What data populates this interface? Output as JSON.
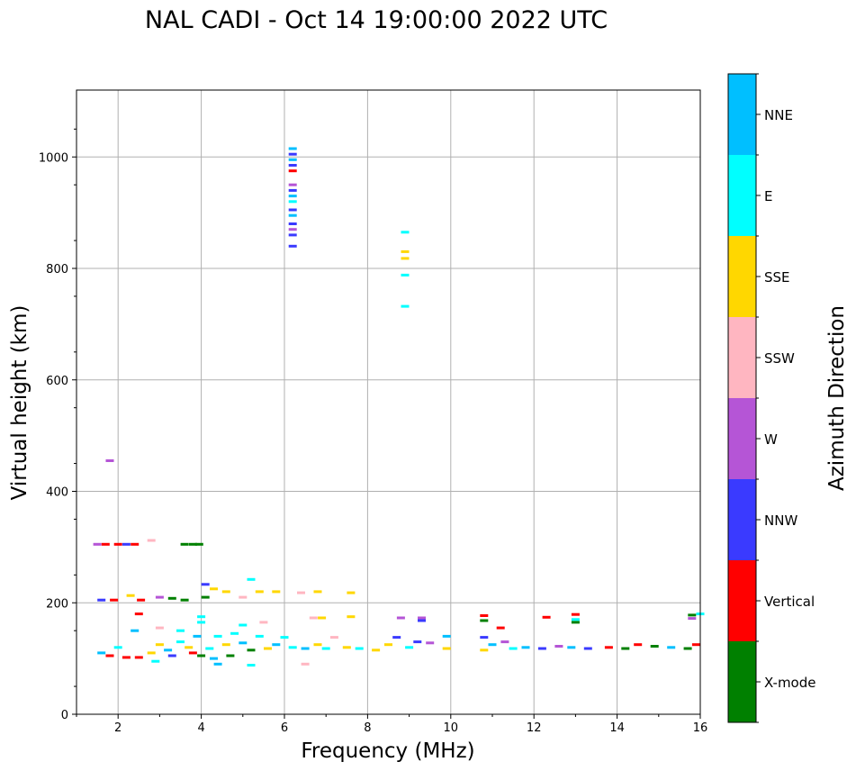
{
  "chart_data": {
    "type": "scatter",
    "title": "NAL CADI - Oct 14 19:00:00 2022 UTC",
    "xlabel": "Frequency (MHz)",
    "ylabel": "Virtual height (km)",
    "xlim": [
      1,
      16
    ],
    "ylim": [
      0,
      1120
    ],
    "x_ticks": [
      2,
      4,
      6,
      8,
      10,
      12,
      14,
      16
    ],
    "y_ticks": [
      0,
      200,
      400,
      600,
      800,
      1000
    ],
    "grid": true,
    "colorbar": {
      "label": "Azimuth Direction",
      "categories": [
        {
          "name": "X-mode",
          "color": "#008000"
        },
        {
          "name": "Vertical",
          "color": "#ff0000"
        },
        {
          "name": "NNW",
          "color": "#3a3aff"
        },
        {
          "name": "W",
          "color": "#b555d6"
        },
        {
          "name": "SSW",
          "color": "#ffb6c1"
        },
        {
          "name": "SSE",
          "color": "#ffd700"
        },
        {
          "name": "E",
          "color": "#00ffff"
        },
        {
          "name": "NNE",
          "color": "#00bfff"
        }
      ]
    },
    "points": [
      {
        "f": 6.2,
        "h": 1015,
        "d": "NNE"
      },
      {
        "f": 6.2,
        "h": 1005,
        "d": "NNW"
      },
      {
        "f": 6.2,
        "h": 995,
        "d": "NNE"
      },
      {
        "f": 6.2,
        "h": 985,
        "d": "NNW"
      },
      {
        "f": 6.2,
        "h": 975,
        "d": "Vertical"
      },
      {
        "f": 6.2,
        "h": 950,
        "d": "W"
      },
      {
        "f": 6.2,
        "h": 940,
        "d": "NNW"
      },
      {
        "f": 6.2,
        "h": 930,
        "d": "NNE"
      },
      {
        "f": 6.2,
        "h": 920,
        "d": "E"
      },
      {
        "f": 6.2,
        "h": 905,
        "d": "NNW"
      },
      {
        "f": 6.2,
        "h": 895,
        "d": "NNE"
      },
      {
        "f": 6.2,
        "h": 880,
        "d": "NNW"
      },
      {
        "f": 6.2,
        "h": 870,
        "d": "W"
      },
      {
        "f": 6.2,
        "h": 860,
        "d": "NNW"
      },
      {
        "f": 6.2,
        "h": 840,
        "d": "NNW"
      },
      {
        "f": 8.9,
        "h": 865,
        "d": "E"
      },
      {
        "f": 8.9,
        "h": 830,
        "d": "SSE"
      },
      {
        "f": 8.9,
        "h": 818,
        "d": "SSE"
      },
      {
        "f": 8.9,
        "h": 788,
        "d": "E"
      },
      {
        "f": 8.9,
        "h": 732,
        "d": "E"
      },
      {
        "f": 1.8,
        "h": 455,
        "d": "W"
      },
      {
        "f": 1.5,
        "h": 305,
        "d": "W"
      },
      {
        "f": 1.7,
        "h": 305,
        "d": "Vertical"
      },
      {
        "f": 2.0,
        "h": 305,
        "d": "Vertical"
      },
      {
        "f": 2.2,
        "h": 305,
        "d": "NNW"
      },
      {
        "f": 2.4,
        "h": 305,
        "d": "Vertical"
      },
      {
        "f": 2.8,
        "h": 312,
        "d": "SSW"
      },
      {
        "f": 3.6,
        "h": 305,
        "d": "X-mode"
      },
      {
        "f": 3.8,
        "h": 305,
        "d": "X-mode"
      },
      {
        "f": 3.95,
        "h": 305,
        "d": "X-mode"
      },
      {
        "f": 1.6,
        "h": 205,
        "d": "NNW"
      },
      {
        "f": 1.9,
        "h": 205,
        "d": "Vertical"
      },
      {
        "f": 2.3,
        "h": 213,
        "d": "SSE"
      },
      {
        "f": 2.55,
        "h": 205,
        "d": "Vertical"
      },
      {
        "f": 3.0,
        "h": 210,
        "d": "W"
      },
      {
        "f": 3.3,
        "h": 208,
        "d": "X-mode"
      },
      {
        "f": 3.6,
        "h": 205,
        "d": "X-mode"
      },
      {
        "f": 4.1,
        "h": 210,
        "d": "X-mode"
      },
      {
        "f": 4.1,
        "h": 233,
        "d": "NNW"
      },
      {
        "f": 4.3,
        "h": 225,
        "d": "SSE"
      },
      {
        "f": 4.6,
        "h": 220,
        "d": "SSE"
      },
      {
        "f": 5.0,
        "h": 210,
        "d": "SSW"
      },
      {
        "f": 5.2,
        "h": 242,
        "d": "E"
      },
      {
        "f": 5.4,
        "h": 220,
        "d": "SSE"
      },
      {
        "f": 5.8,
        "h": 220,
        "d": "SSE"
      },
      {
        "f": 6.4,
        "h": 218,
        "d": "SSW"
      },
      {
        "f": 6.8,
        "h": 220,
        "d": "SSE"
      },
      {
        "f": 7.6,
        "h": 218,
        "d": "SSE"
      },
      {
        "f": 6.7,
        "h": 173,
        "d": "SSW"
      },
      {
        "f": 6.9,
        "h": 173,
        "d": "SSE"
      },
      {
        "f": 7.6,
        "h": 175,
        "d": "SSE"
      },
      {
        "f": 8.8,
        "h": 173,
        "d": "W"
      },
      {
        "f": 9.3,
        "h": 173,
        "d": "W"
      },
      {
        "f": 9.3,
        "h": 168,
        "d": "NNW"
      },
      {
        "f": 10.8,
        "h": 177,
        "d": "Vertical"
      },
      {
        "f": 10.8,
        "h": 168,
        "d": "X-mode"
      },
      {
        "f": 11.2,
        "h": 155,
        "d": "Vertical"
      },
      {
        "f": 12.3,
        "h": 174,
        "d": "Vertical"
      },
      {
        "f": 13.0,
        "h": 179,
        "d": "Vertical"
      },
      {
        "f": 13.0,
        "h": 170,
        "d": "E"
      },
      {
        "f": 13.0,
        "h": 165,
        "d": "X-mode"
      },
      {
        "f": 15.8,
        "h": 178,
        "d": "X-mode"
      },
      {
        "f": 15.8,
        "h": 172,
        "d": "W"
      },
      {
        "f": 16.0,
        "h": 180,
        "d": "E"
      },
      {
        "f": 4.0,
        "h": 175,
        "d": "E"
      },
      {
        "f": 4.0,
        "h": 165,
        "d": "E"
      },
      {
        "f": 5.0,
        "h": 160,
        "d": "E"
      },
      {
        "f": 5.5,
        "h": 165,
        "d": "SSW"
      },
      {
        "f": 3.0,
        "h": 155,
        "d": "SSW"
      },
      {
        "f": 3.5,
        "h": 150,
        "d": "E"
      },
      {
        "f": 2.4,
        "h": 150,
        "d": "NNE"
      },
      {
        "f": 2.5,
        "h": 180,
        "d": "Vertical"
      },
      {
        "f": 2.0,
        "h": 120,
        "d": "E"
      },
      {
        "f": 1.6,
        "h": 110,
        "d": "NNE"
      },
      {
        "f": 1.8,
        "h": 105,
        "d": "Vertical"
      },
      {
        "f": 2.2,
        "h": 102,
        "d": "Vertical"
      },
      {
        "f": 2.5,
        "h": 102,
        "d": "Vertical"
      },
      {
        "f": 2.8,
        "h": 110,
        "d": "SSE"
      },
      {
        "f": 2.9,
        "h": 95,
        "d": "E"
      },
      {
        "f": 3.0,
        "h": 125,
        "d": "SSE"
      },
      {
        "f": 3.2,
        "h": 115,
        "d": "NNE"
      },
      {
        "f": 3.3,
        "h": 105,
        "d": "NNW"
      },
      {
        "f": 3.5,
        "h": 130,
        "d": "E"
      },
      {
        "f": 3.7,
        "h": 120,
        "d": "SSE"
      },
      {
        "f": 3.8,
        "h": 110,
        "d": "Vertical"
      },
      {
        "f": 3.9,
        "h": 140,
        "d": "NNE"
      },
      {
        "f": 4.0,
        "h": 105,
        "d": "X-mode"
      },
      {
        "f": 4.2,
        "h": 118,
        "d": "E"
      },
      {
        "f": 4.3,
        "h": 100,
        "d": "NNE"
      },
      {
        "f": 4.4,
        "h": 140,
        "d": "E"
      },
      {
        "f": 4.6,
        "h": 125,
        "d": "SSE"
      },
      {
        "f": 4.7,
        "h": 105,
        "d": "X-mode"
      },
      {
        "f": 4.8,
        "h": 145,
        "d": "E"
      },
      {
        "f": 5.0,
        "h": 128,
        "d": "NNE"
      },
      {
        "f": 5.2,
        "h": 115,
        "d": "X-mode"
      },
      {
        "f": 5.4,
        "h": 140,
        "d": "E"
      },
      {
        "f": 5.6,
        "h": 118,
        "d": "SSE"
      },
      {
        "f": 5.8,
        "h": 125,
        "d": "NNE"
      },
      {
        "f": 6.0,
        "h": 138,
        "d": "E"
      },
      {
        "f": 6.2,
        "h": 120,
        "d": "E"
      },
      {
        "f": 6.5,
        "h": 118,
        "d": "NNE"
      },
      {
        "f": 6.8,
        "h": 125,
        "d": "SSE"
      },
      {
        "f": 7.0,
        "h": 118,
        "d": "E"
      },
      {
        "f": 7.2,
        "h": 138,
        "d": "SSW"
      },
      {
        "f": 7.5,
        "h": 120,
        "d": "SSE"
      },
      {
        "f": 7.8,
        "h": 118,
        "d": "E"
      },
      {
        "f": 8.2,
        "h": 115,
        "d": "SSE"
      },
      {
        "f": 8.5,
        "h": 125,
        "d": "SSE"
      },
      {
        "f": 8.7,
        "h": 138,
        "d": "NNW"
      },
      {
        "f": 9.0,
        "h": 120,
        "d": "E"
      },
      {
        "f": 9.2,
        "h": 130,
        "d": "NNW"
      },
      {
        "f": 9.5,
        "h": 128,
        "d": "W"
      },
      {
        "f": 9.9,
        "h": 118,
        "d": "SSE"
      },
      {
        "f": 9.9,
        "h": 140,
        "d": "NNE"
      },
      {
        "f": 10.8,
        "h": 115,
        "d": "SSE"
      },
      {
        "f": 10.8,
        "h": 138,
        "d": "NNW"
      },
      {
        "f": 11.0,
        "h": 125,
        "d": "NNE"
      },
      {
        "f": 11.3,
        "h": 130,
        "d": "W"
      },
      {
        "f": 11.5,
        "h": 118,
        "d": "E"
      },
      {
        "f": 11.8,
        "h": 120,
        "d": "NNE"
      },
      {
        "f": 12.2,
        "h": 118,
        "d": "NNW"
      },
      {
        "f": 12.6,
        "h": 122,
        "d": "W"
      },
      {
        "f": 12.9,
        "h": 120,
        "d": "NNE"
      },
      {
        "f": 13.3,
        "h": 118,
        "d": "NNW"
      },
      {
        "f": 13.8,
        "h": 120,
        "d": "Vertical"
      },
      {
        "f": 14.2,
        "h": 118,
        "d": "X-mode"
      },
      {
        "f": 14.5,
        "h": 125,
        "d": "Vertical"
      },
      {
        "f": 14.9,
        "h": 122,
        "d": "X-mode"
      },
      {
        "f": 15.3,
        "h": 120,
        "d": "NNE"
      },
      {
        "f": 15.7,
        "h": 118,
        "d": "X-mode"
      },
      {
        "f": 15.9,
        "h": 125,
        "d": "Vertical"
      },
      {
        "f": 6.5,
        "h": 90,
        "d": "SSW"
      },
      {
        "f": 4.4,
        "h": 90,
        "d": "NNE"
      },
      {
        "f": 5.2,
        "h": 88,
        "d": "E"
      }
    ]
  }
}
